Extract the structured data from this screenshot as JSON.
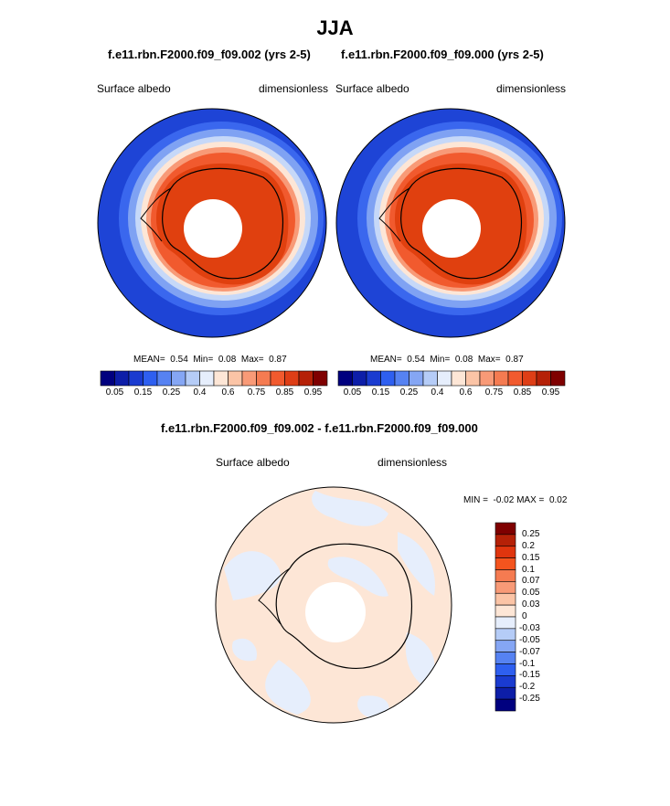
{
  "title": "JJA",
  "panels": [
    {
      "case": "f.e11.rbn.F2000.f09_f09.002 (yrs 2-5)",
      "variable": "Surface albedo",
      "units": "dimensionless",
      "stats": {
        "mean_label": "MEAN=",
        "mean": "0.54",
        "min_label": "Min=",
        "min": "0.08",
        "max_label": "Max=",
        "max": "0.87"
      }
    },
    {
      "case": "f.e11.rbn.F2000.f09_f09.000 (yrs 2-5)",
      "variable": "Surface albedo",
      "units": "dimensionless",
      "stats": {
        "mean_label": "MEAN=",
        "mean": "0.54",
        "min_label": "Min=",
        "min": "0.08",
        "max_label": "Max=",
        "max": "0.87"
      }
    }
  ],
  "colorbar_top": {
    "ticks": [
      "0.05",
      "0.15",
      "0.25",
      "0.4",
      "0.6",
      "0.75",
      "0.85",
      "0.95"
    ],
    "colors": [
      "#00007f",
      "#0d1ea8",
      "#1a3bd0",
      "#2e5ff0",
      "#5682f2",
      "#85a6f4",
      "#b5ccf7",
      "#e6eefc",
      "#fde6d6",
      "#fbc4a6",
      "#f89a77",
      "#f57b51",
      "#f15a2e",
      "#de3e16",
      "#b52107",
      "#7f0000"
    ]
  },
  "difference": {
    "title": "f.e11.rbn.F2000.f09_f09.002 - f.e11.rbn.F2000.f09_f09.000",
    "variable": "Surface albedo",
    "units": "dimensionless",
    "stats": {
      "min_label": "MIN =",
      "min": "-0.02",
      "max_label": "MAX =",
      "max": "0.02"
    },
    "colorbar": {
      "ticks": [
        "0.25",
        "0.2",
        "0.15",
        "0.1",
        "0.07",
        "0.05",
        "0.03",
        "0",
        "-0.03",
        "-0.05",
        "-0.07",
        "-0.1",
        "-0.15",
        "-0.2",
        "-0.25"
      ],
      "colors": [
        "#7f0000",
        "#b52107",
        "#e0350e",
        "#f4541e",
        "#f57b51",
        "#f89a77",
        "#fbc4a6",
        "#fde6d6",
        "#e6eefc",
        "#b5ccf7",
        "#85a6f4",
        "#5682f2",
        "#2e5ff0",
        "#1a3bd0",
        "#0d1ea8",
        "#00007f"
      ]
    }
  }
}
